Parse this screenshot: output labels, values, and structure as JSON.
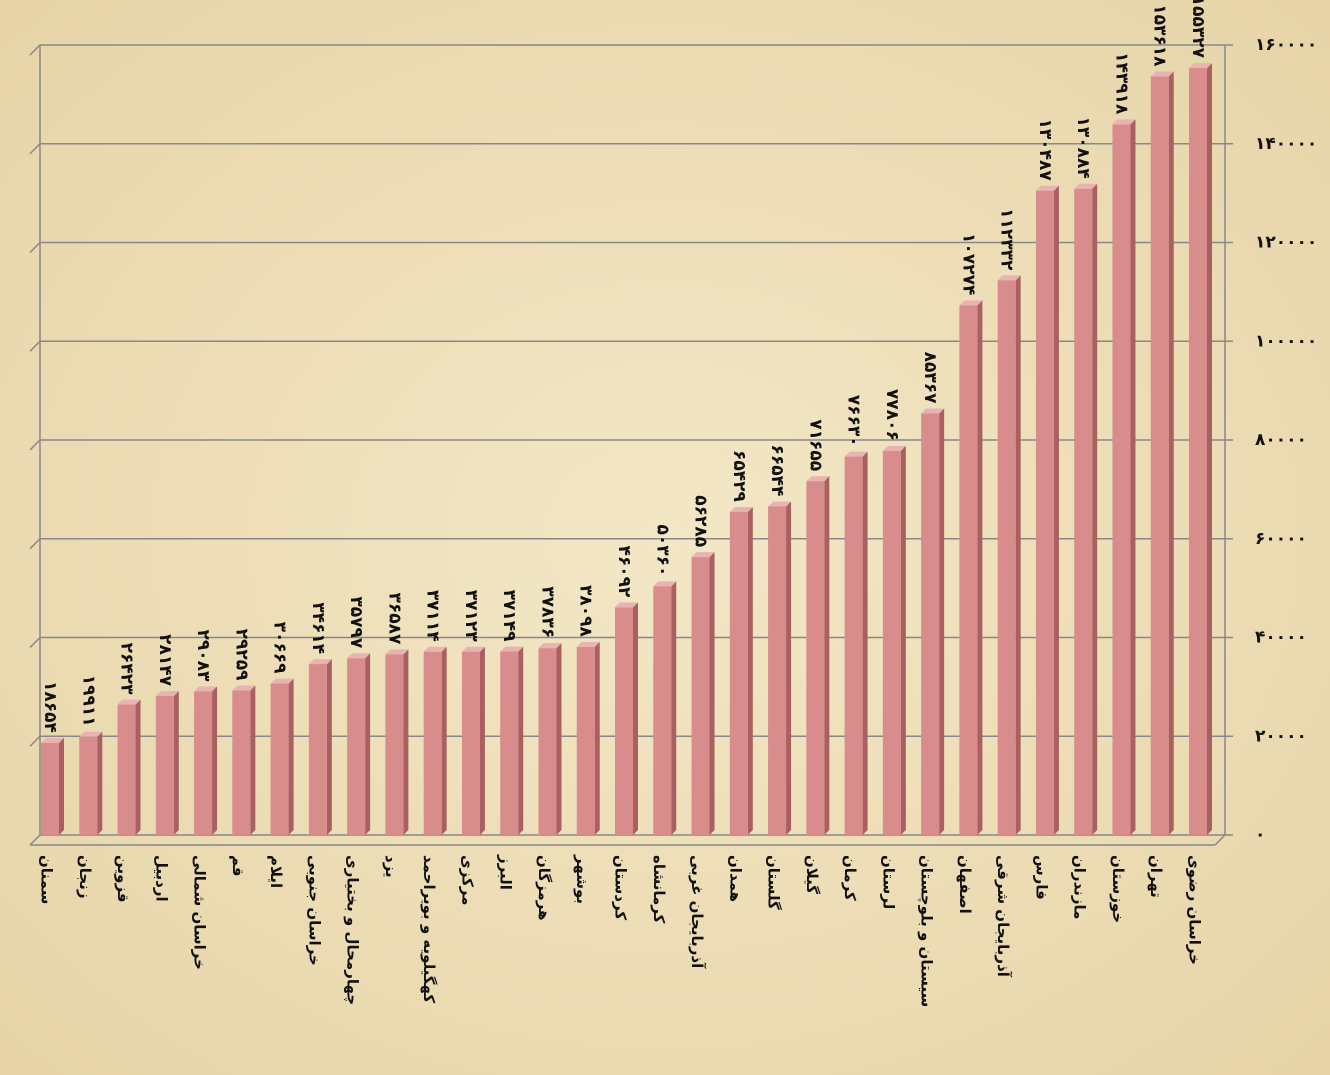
{
  "chart_data": {
    "type": "bar",
    "categories": [
      "سمنان",
      "زنجان",
      "قزوین",
      "اردبیل",
      "خراسان شمالی",
      "قم",
      "ایلام",
      "خراسان جنوبی",
      "چهارمحال و بختیاری",
      "یزد",
      "کهگیلویه و بویراحمد",
      "مرکزی",
      "البرز",
      "هرمزگان",
      "بوشهر",
      "کردستان",
      "کرمانشاه",
      "آذربایجان غربی",
      "همدان",
      "گلستان",
      "گیلان",
      "کرمان",
      "لرستان",
      "سیستان و بلوچستان",
      "اصفهان",
      "آذربایجان شرقی",
      "فارس",
      "مازندران",
      "خوزستان",
      "تهران",
      "خراسان رضوی"
    ],
    "values": [
      18654,
      19911,
      26423,
      28147,
      29083,
      29259,
      30669,
      34614,
      35797,
      36587,
      37114,
      37123,
      37149,
      37836,
      38098,
      46092,
      50360,
      56285,
      65429,
      66544,
      71655,
      76630,
      77806,
      85367,
      107274,
      112332,
      130487,
      130884,
      143918,
      153618,
      155327
    ],
    "value_labels": [
      "۱۸۶۵۴",
      "۱۹۹۱۱",
      "۲۶۴۲۳",
      "۲۸۱۴۷",
      "۲۹۰۸۳",
      "۲۹۲۵۹",
      "۳۰۶۶۹",
      "۳۴۶۱۴",
      "۳۵۷۹۷",
      "۳۶۵۸۷",
      "۳۷۱۱۴",
      "۳۷۱۲۳",
      "۳۷۱۴۹",
      "۳۷۸۳۶",
      "۳۸۰۹۸",
      "۴۶۰۹۲",
      "۵۰۳۶۰",
      "۵۶۲۸۵",
      "۶۵۴۲۹",
      "۶۶۵۴۴",
      "۷۱۶۵۵",
      "۷۶۶۳۰",
      "۷۷۸۰۶",
      "۸۵۳۶۷",
      "۱۰۷۲۷۴",
      "۱۱۲۳۳۲",
      "۱۳۰۴۸۷",
      "۱۳۰۸۸۴",
      "۱۴۳۹۱۸",
      "۱۵۳۶۱۸",
      "۱۵۵۳۲۷"
    ],
    "color": "#d98c8c",
    "ylim": [
      0,
      160000
    ],
    "yticks": [
      {
        "value": 0,
        "label": "۰"
      },
      {
        "value": 20000,
        "label": "۲۰۰۰۰"
      },
      {
        "value": 40000,
        "label": "۴۰۰۰۰"
      },
      {
        "value": 60000,
        "label": "۶۰۰۰۰"
      },
      {
        "value": 80000,
        "label": "۸۰۰۰۰"
      },
      {
        "value": 100000,
        "label": "۱۰۰۰۰۰"
      },
      {
        "value": 120000,
        "label": "۱۲۰۰۰۰"
      },
      {
        "value": 140000,
        "label": "۱۴۰۰۰۰"
      },
      {
        "value": 160000,
        "label": "۱۶۰۰۰۰"
      }
    ],
    "grid": true
  }
}
